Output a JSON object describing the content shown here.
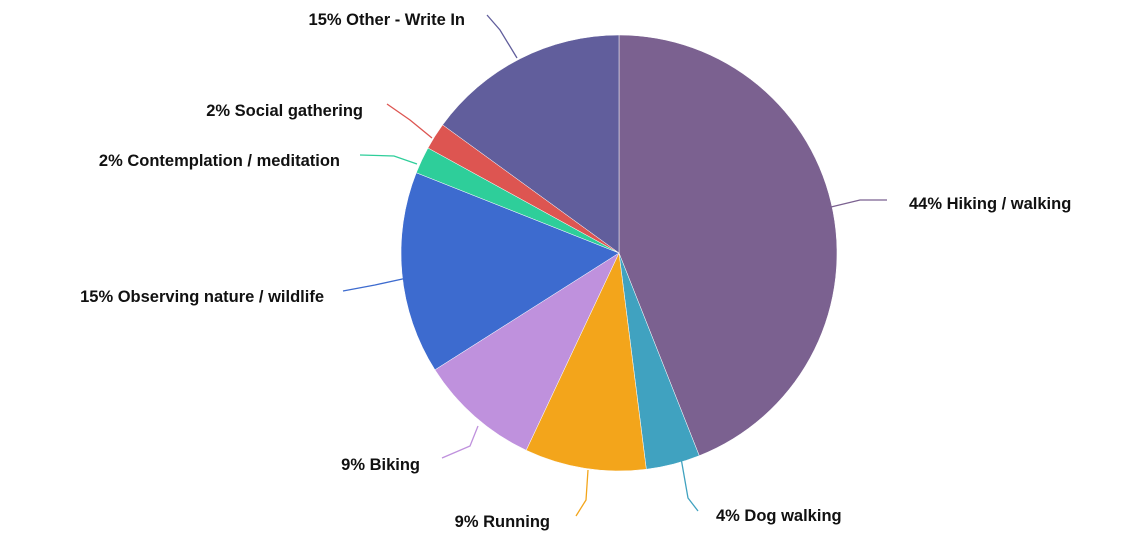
{
  "chart_data": {
    "type": "pie",
    "title": "",
    "start_angle_deg": 0,
    "direction": "clockwise",
    "slices": [
      {
        "label": "44% Hiking / walking",
        "value": 44,
        "color": "#7B6190",
        "anchor": "start"
      },
      {
        "label": "4% Dog walking",
        "value": 4,
        "color": "#40A2C0",
        "anchor": "start"
      },
      {
        "label": "9% Running",
        "value": 9,
        "color": "#F3A51B",
        "anchor": "end"
      },
      {
        "label": "9% Biking",
        "value": 9,
        "color": "#BF91DD",
        "anchor": "end"
      },
      {
        "label": "15% Observing nature / wildlife",
        "value": 15,
        "color": "#3D6BCF",
        "anchor": "end"
      },
      {
        "label": "2% Contemplation / meditation",
        "value": 2,
        "color": "#2ECE9A",
        "anchor": "end"
      },
      {
        "label": "2% Social gathering",
        "value": 2,
        "color": "#DD5551",
        "anchor": "end"
      },
      {
        "label": "15% Other - Write In",
        "value": 15,
        "color": "#615E9C",
        "anchor": "end"
      }
    ]
  }
}
